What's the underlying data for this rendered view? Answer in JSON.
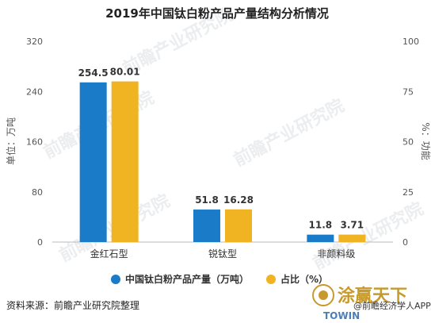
{
  "chart_data": {
    "type": "bar",
    "title": "2019年中国钛白粉产品产量结构分析情况",
    "categories": [
      "金红石型",
      "锐钛型",
      "非颜料级"
    ],
    "series": [
      {
        "name": "中国钛白粉产品产量（万吨）",
        "values": [
          254.5,
          51.8,
          11.8
        ],
        "labels": [
          "254.5",
          "51.8",
          "11.8"
        ],
        "axis": "left",
        "color": "#1a7bc8"
      },
      {
        "name": "占比（%）",
        "values": [
          80.01,
          16.28,
          3.71
        ],
        "labels": [
          "80.01",
          "16.28",
          "3.71"
        ],
        "axis": "right",
        "color": "#f0b322"
      }
    ],
    "y_left": {
      "label": "单位：万吨",
      "lim": [
        0,
        320
      ],
      "ticks": [
        "0",
        "80",
        "160",
        "240",
        "320"
      ]
    },
    "y_right": {
      "label": "%：功能",
      "lim": [
        0,
        100
      ],
      "ticks": [
        "0",
        "25",
        "50",
        "75",
        "100"
      ]
    },
    "grid": false,
    "legend_position": "bottom"
  },
  "footer": {
    "source": "资料来源：前瞻产业研究院整理",
    "watermark": "前瞻产业研究院",
    "brand": "涂赢天下",
    "app_credit": "@前瞻经济学人APP",
    "towin": "TOWIN"
  }
}
